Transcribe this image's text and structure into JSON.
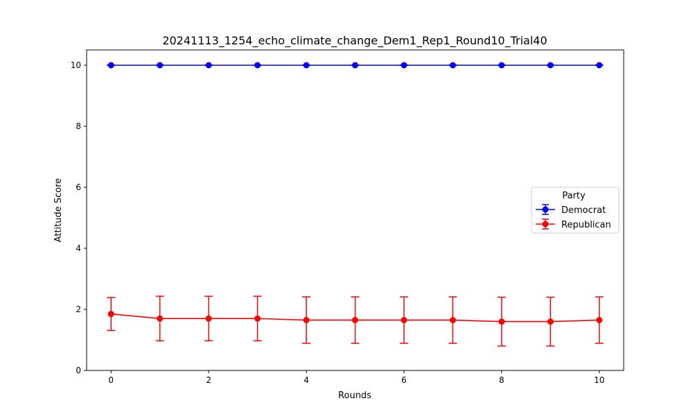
{
  "chart_data": {
    "type": "line",
    "title": "20241113_1254_echo_climate_change_Dem1_Rep1_Round10_Trial40",
    "xlabel": "Rounds",
    "ylabel": "Attitude Score",
    "x": [
      0,
      1,
      2,
      3,
      4,
      5,
      6,
      7,
      8,
      9,
      10
    ],
    "xlim": [
      -0.5,
      10.5
    ],
    "ylim": [
      0,
      10.5
    ],
    "xticks": [
      0,
      2,
      4,
      6,
      8,
      10
    ],
    "yticks": [
      0,
      2,
      4,
      6,
      8,
      10
    ],
    "grid": false,
    "legend": {
      "title": "Party",
      "position": "center-right"
    },
    "series": [
      {
        "name": "Democrat",
        "color": "#0000ff",
        "marker": "circle",
        "error_bars": true,
        "values": [
          10,
          10,
          10,
          10,
          10,
          10,
          10,
          10,
          10,
          10,
          10
        ],
        "errors": [
          0,
          0,
          0,
          0,
          0,
          0,
          0,
          0,
          0,
          0,
          0
        ]
      },
      {
        "name": "Republican",
        "color": "#ff0000",
        "marker": "circle",
        "error_bars": true,
        "values": [
          1.85,
          1.7,
          1.7,
          1.7,
          1.65,
          1.65,
          1.65,
          1.65,
          1.6,
          1.6,
          1.65
        ],
        "errors": [
          0.54,
          0.73,
          0.73,
          0.73,
          0.76,
          0.76,
          0.76,
          0.76,
          0.8,
          0.8,
          0.76
        ]
      }
    ]
  }
}
